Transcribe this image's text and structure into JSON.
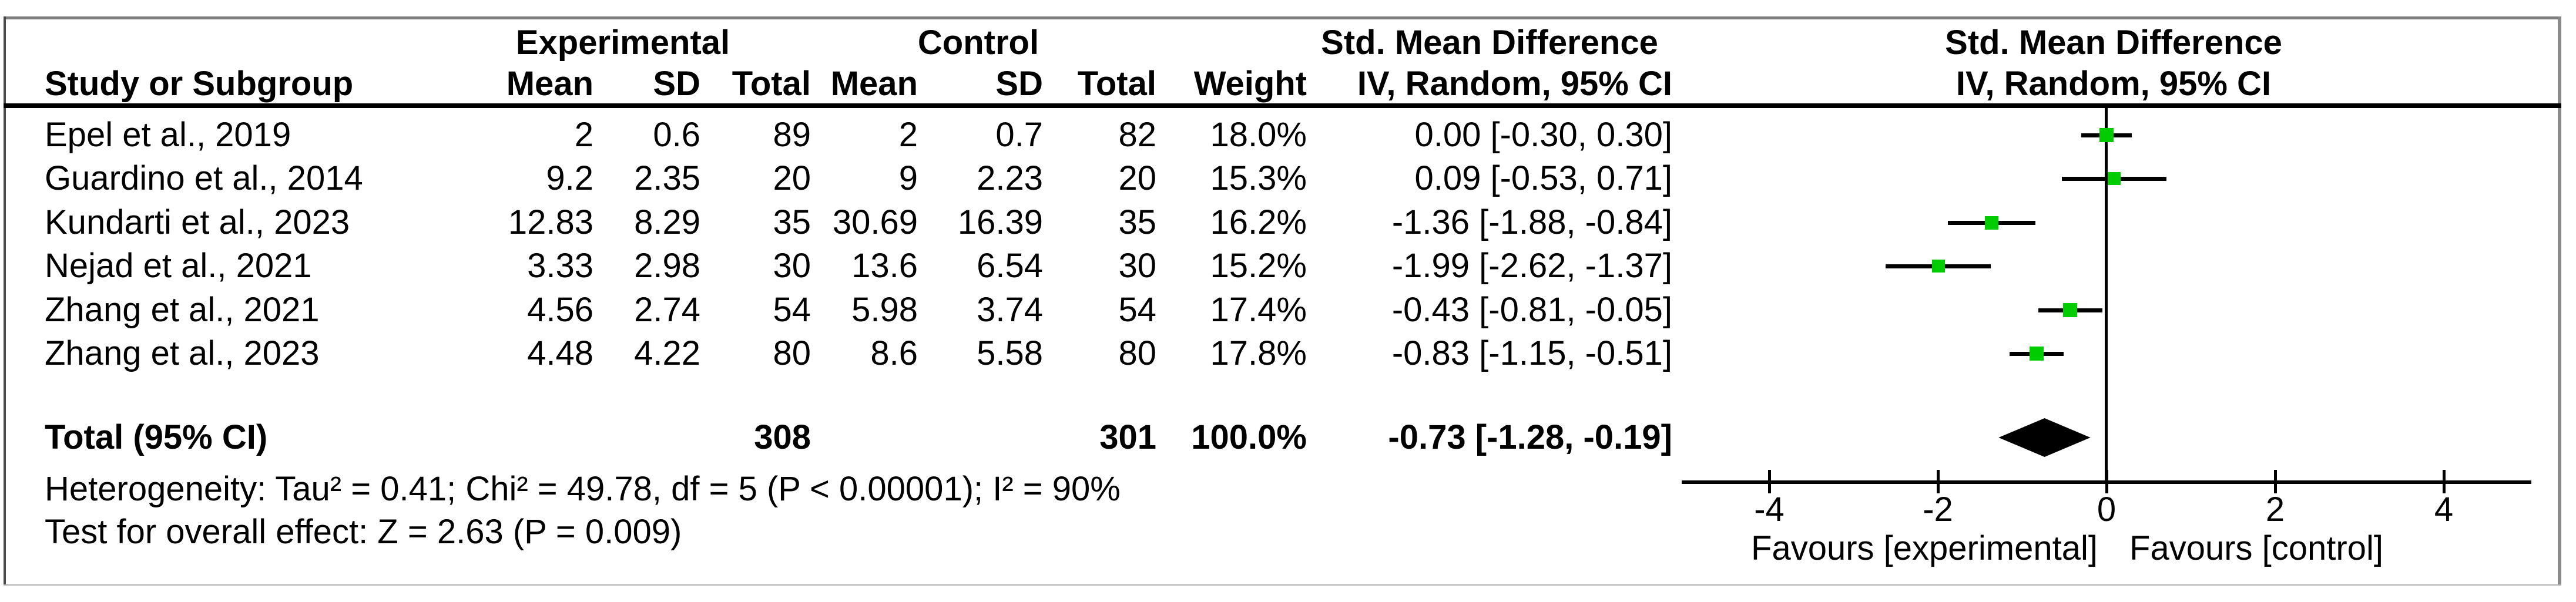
{
  "header": {
    "group_experimental": "Experimental",
    "group_control": "Control",
    "group_smd": "Std. Mean Difference",
    "col_study": "Study or Subgroup",
    "col_mean": "Mean",
    "col_sd": "SD",
    "col_total": "Total",
    "col_weight": "Weight",
    "col_ci": "IV, Random, 95% CI",
    "plot_title_line1": "Std. Mean Difference",
    "plot_title_line2": "IV, Random, 95% CI"
  },
  "footer": {
    "heterogeneity": "Heterogeneity: Tau² = 0.41; Chi² = 49.78, df = 5 (P < 0.00001); I² = 90%",
    "overall_effect": "Test for overall effect: Z = 2.63 (P = 0.009)"
  },
  "chart_data": {
    "type": "forest",
    "effect_measure": "Std. Mean Difference",
    "model": "IV, Random, 95% CI",
    "studies": [
      {
        "study": "Epel et al., 2019",
        "exp_mean": "2",
        "exp_sd": "0.6",
        "exp_total": "89",
        "ctl_mean": "2",
        "ctl_sd": "0.7",
        "ctl_total": "82",
        "weight": "18.0%",
        "weight_pct": 18.0,
        "est": 0.0,
        "lo": -0.3,
        "hi": 0.3,
        "ci_text": "0.00 [-0.30, 0.30]"
      },
      {
        "study": "Guardino et al., 2014",
        "exp_mean": "9.2",
        "exp_sd": "2.35",
        "exp_total": "20",
        "ctl_mean": "9",
        "ctl_sd": "2.23",
        "ctl_total": "20",
        "weight": "15.3%",
        "weight_pct": 15.3,
        "est": 0.09,
        "lo": -0.53,
        "hi": 0.71,
        "ci_text": "0.09 [-0.53, 0.71]"
      },
      {
        "study": "Kundarti et al., 2023",
        "exp_mean": "12.83",
        "exp_sd": "8.29",
        "exp_total": "35",
        "ctl_mean": "30.69",
        "ctl_sd": "16.39",
        "ctl_total": "35",
        "weight": "16.2%",
        "weight_pct": 16.2,
        "est": -1.36,
        "lo": -1.88,
        "hi": -0.84,
        "ci_text": "-1.36 [-1.88, -0.84]"
      },
      {
        "study": "Nejad et al., 2021",
        "exp_mean": "3.33",
        "exp_sd": "2.98",
        "exp_total": "30",
        "ctl_mean": "13.6",
        "ctl_sd": "6.54",
        "ctl_total": "30",
        "weight": "15.2%",
        "weight_pct": 15.2,
        "est": -1.99,
        "lo": -2.62,
        "hi": -1.37,
        "ci_text": "-1.99 [-2.62, -1.37]"
      },
      {
        "study": "Zhang et al., 2021",
        "exp_mean": "4.56",
        "exp_sd": "2.74",
        "exp_total": "54",
        "ctl_mean": "5.98",
        "ctl_sd": "3.74",
        "ctl_total": "54",
        "weight": "17.4%",
        "weight_pct": 17.4,
        "est": -0.43,
        "lo": -0.81,
        "hi": -0.05,
        "ci_text": "-0.43 [-0.81, -0.05]"
      },
      {
        "study": "Zhang et al., 2023",
        "exp_mean": "4.48",
        "exp_sd": "4.22",
        "exp_total": "80",
        "ctl_mean": "8.6",
        "ctl_sd": "5.58",
        "ctl_total": "80",
        "weight": "17.8%",
        "weight_pct": 17.8,
        "est": -0.83,
        "lo": -1.15,
        "hi": -0.51,
        "ci_text": "-0.83 [-1.15, -0.51]"
      }
    ],
    "total": {
      "label": "Total (95% CI)",
      "exp_total": "308",
      "ctl_total": "301",
      "weight": "100.0%",
      "est": -0.73,
      "lo": -1.28,
      "hi": -0.19,
      "ci_text": "-0.73 [-1.28, -0.19]"
    },
    "axis": {
      "min": -5,
      "max": 5,
      "ticks": [
        -4,
        -2,
        0,
        2,
        4
      ],
      "favours_left": "Favours [experimental]",
      "favours_right": "Favours [control]"
    },
    "marker_color": "#00CC00",
    "line_color": "#000000"
  }
}
